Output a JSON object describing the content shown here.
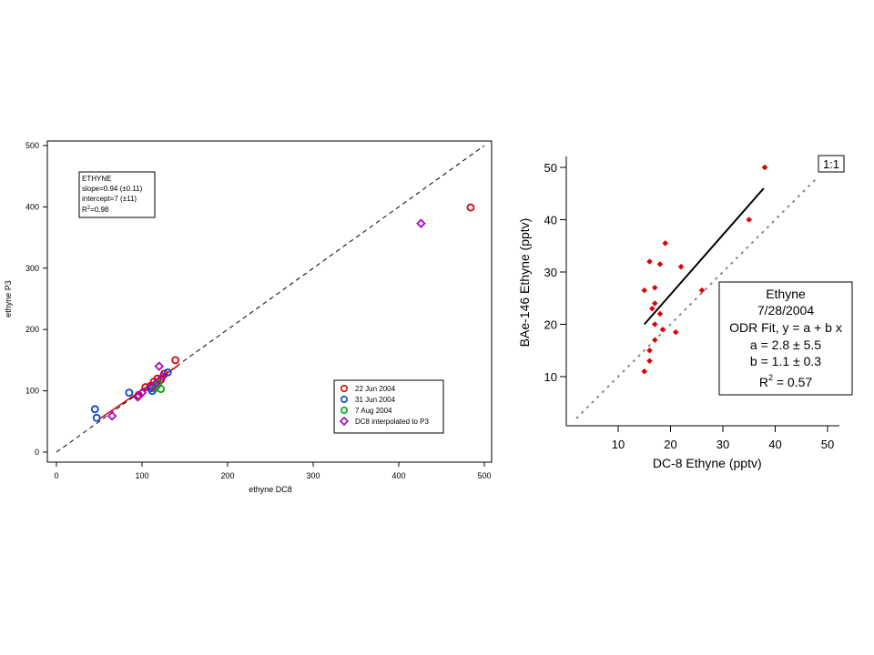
{
  "chart_data": [
    {
      "type": "scatter",
      "xlabel": "ethyne DC8",
      "ylabel": "ethyne P3",
      "xlim": [
        0,
        500
      ],
      "ylim": [
        0,
        500
      ],
      "xticks": [
        "0",
        "100",
        "200",
        "300",
        "400",
        "500"
      ],
      "yticks": [
        "0",
        "100",
        "200",
        "300",
        "400",
        "500"
      ],
      "annotation": {
        "lines": [
          "ETHYNE",
          "slope=0.94 (±0.11)",
          "intercept=7 (±11)",
          "=0.98"
        ],
        "r_letter": "R",
        "r_sup": "2"
      },
      "legend_position": "bottom-right",
      "one_to_one_line": true,
      "fit_line": {
        "color": "#cc0000",
        "x": [
          50,
          142
        ],
        "y": [
          54,
          141
        ]
      },
      "series": [
        {
          "name": "22 Jun 2004",
          "color": "#dd0000",
          "marker": "circle",
          "points": [
            [
              484,
              399
            ],
            [
              139,
              150
            ],
            [
              114,
              115
            ],
            [
              110,
              108
            ],
            [
              104,
              106
            ],
            [
              126,
              128
            ],
            [
              118,
              120
            ],
            [
              96,
              93
            ],
            [
              122,
              118
            ]
          ]
        },
        {
          "name": "31 Jun 2004",
          "color": "#0044cc",
          "marker": "circle",
          "points": [
            [
              45,
              70
            ],
            [
              47,
              56
            ],
            [
              85,
              97
            ],
            [
              130,
              130
            ],
            [
              110,
              104
            ],
            [
              112,
              100
            ]
          ]
        },
        {
          "name": "7 Aug 2004",
          "color": "#00aa00",
          "marker": "circle",
          "points": [
            [
              122,
              103
            ],
            [
              117,
              108
            ],
            [
              119,
              112
            ],
            [
              115,
              104
            ]
          ]
        },
        {
          "name": "DC8 interpolated to  P3",
          "color": "#aa00cc",
          "marker": "diamond",
          "points": [
            [
              426,
              373
            ],
            [
              65,
              59
            ],
            [
              95,
              90
            ],
            [
              120,
              140
            ],
            [
              100,
              97
            ],
            [
              112,
              106
            ],
            [
              124,
              123
            ],
            [
              116,
              112
            ]
          ]
        }
      ]
    },
    {
      "type": "scatter",
      "xlabel": "DC-8 Ethyne (pptv)",
      "ylabel": "BAe-146 Ethyne (pptv)",
      "xlim": [
        1,
        53
      ],
      "ylim": [
        1,
        54
      ],
      "xticks": [
        "10",
        "20",
        "30",
        "40",
        "50"
      ],
      "yticks": [
        "10",
        "20",
        "30",
        "40",
        "50"
      ],
      "one_to_one_label": "1:1",
      "fit_line": {
        "x": [
          15,
          37.8
        ],
        "y": [
          20,
          46
        ]
      },
      "annotation": {
        "lines": [
          "Ethyne",
          "7/28/2004",
          "ODR Fit, y = a + b x",
          "a = 2.8 ± 5.5",
          "b = 1.1 ± 0.3",
          " = 0.57"
        ],
        "r_letter": "R",
        "r_sup": "2"
      },
      "series": [
        {
          "color": "#dd0000",
          "points": [
            [
              15,
              26.5
            ],
            [
              16,
              32
            ],
            [
              17,
              27
            ],
            [
              18,
              31.5
            ],
            [
              19,
              35.5
            ],
            [
              16.5,
              23
            ],
            [
              17,
              20
            ],
            [
              18,
              22
            ],
            [
              15,
              11
            ],
            [
              16,
              13
            ],
            [
              17,
              17
            ],
            [
              18.5,
              19
            ],
            [
              21,
              18.5
            ],
            [
              22,
              31
            ],
            [
              26,
              26.5
            ],
            [
              35,
              40
            ],
            [
              38,
              50
            ],
            [
              16,
              15
            ],
            [
              17,
              24
            ]
          ]
        }
      ]
    }
  ]
}
